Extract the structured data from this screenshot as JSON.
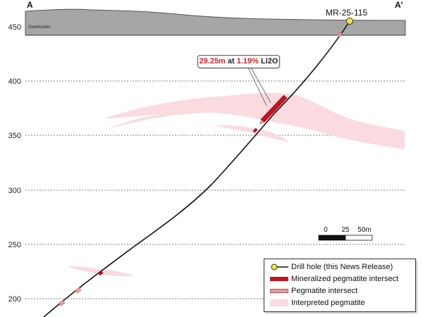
{
  "section": {
    "end_left": "A",
    "end_right": "A'",
    "overburden_label": "Overburden",
    "y_ticks": [
      "450",
      "400",
      "350",
      "300",
      "250",
      "200"
    ],
    "drill_hole_id": "MR-25-115"
  },
  "intercept_callout": {
    "length": "29.25m",
    "at_word": "at",
    "grade": "1.19%",
    "element": "Li2O"
  },
  "scale_bar": {
    "labels": [
      "0",
      "25",
      "50m"
    ]
  },
  "legend": {
    "items": [
      {
        "label": "Drill hole (this News Release)",
        "icon": "drill-hole-collar-icon"
      },
      {
        "label": "Mineralized pegmatite intersect",
        "icon": "mineralized-bar-icon",
        "color": "#c0141e"
      },
      {
        "label": "Pegmatite intersect",
        "icon": "pegmatite-bar-icon",
        "color": "#e79aa3"
      },
      {
        "label": "Interpreted pegmatite",
        "icon": "interpreted-fill-icon",
        "color": "#f9dbe0"
      }
    ]
  },
  "colors": {
    "overburden": "#a6a6a6",
    "interpreted_pegmatite": "#f9dbe0",
    "mineralized": "#c0141e",
    "pegmatite_intersect": "#e79aa3",
    "collar": "#f5e33a"
  }
}
